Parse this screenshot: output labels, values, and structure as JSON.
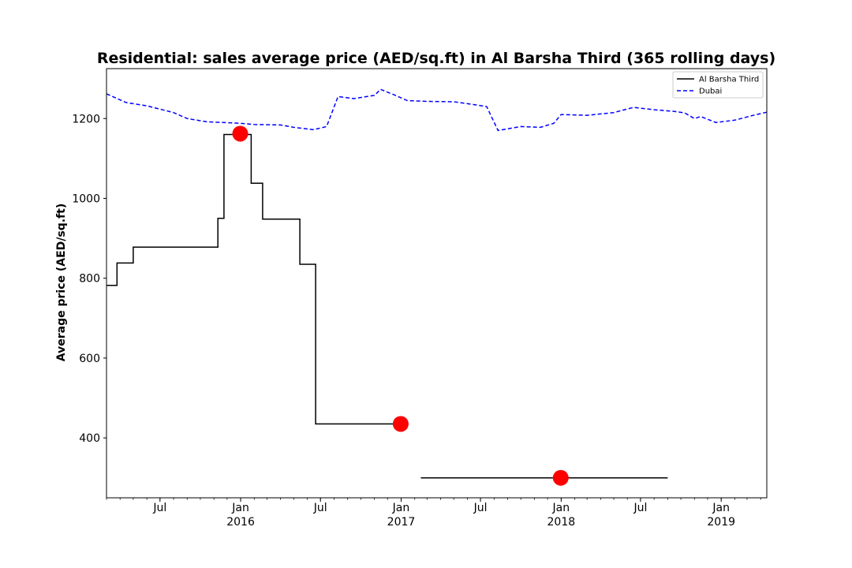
{
  "chart_data": {
    "type": "line",
    "title": "Residential: sales average price (AED/sq.ft) in Al Barsha Third (365 rolling days)",
    "ylabel": "Average price (AED/sq.ft)",
    "xlabel": "",
    "xlim": [
      "2015-03-01",
      "2019-04-15"
    ],
    "ylim": [
      250,
      1325
    ],
    "yticks": [
      400,
      600,
      800,
      1000,
      1200
    ],
    "xticks": [
      {
        "date": "2015-07-01",
        "label": "Jul",
        "sublabel": ""
      },
      {
        "date": "2016-01-01",
        "label": "Jan",
        "sublabel": "2016"
      },
      {
        "date": "2016-07-01",
        "label": "Jul",
        "sublabel": ""
      },
      {
        "date": "2017-01-01",
        "label": "Jan",
        "sublabel": "2017"
      },
      {
        "date": "2017-07-01",
        "label": "Jul",
        "sublabel": ""
      },
      {
        "date": "2018-01-01",
        "label": "Jan",
        "sublabel": "2018"
      },
      {
        "date": "2018-07-01",
        "label": "Jul",
        "sublabel": ""
      },
      {
        "date": "2019-01-01",
        "label": "Jan",
        "sublabel": "2019"
      }
    ],
    "legend_position": "top-right",
    "grid": false,
    "series": [
      {
        "name": "Al Barsha Third",
        "color": "#000000",
        "style": "solid",
        "step": true,
        "segments": [
          [
            {
              "x": "2015-03-01",
              "y": 782
            },
            {
              "x": "2015-03-25",
              "y": 838
            },
            {
              "x": "2015-05-01",
              "y": 878
            },
            {
              "x": "2015-11-10",
              "y": 950
            },
            {
              "x": "2015-11-24",
              "y": 1160
            },
            {
              "x": "2016-01-25",
              "y": 1038
            },
            {
              "x": "2016-02-20",
              "y": 948
            },
            {
              "x": "2016-05-15",
              "y": 835
            },
            {
              "x": "2016-06-20",
              "y": 435
            },
            {
              "x": "2017-01-01",
              "y": 435
            }
          ],
          [
            {
              "x": "2017-02-15",
              "y": 300
            },
            {
              "x": "2018-09-01",
              "y": 300
            }
          ]
        ]
      },
      {
        "name": "Dubai",
        "color": "#0000ff",
        "style": "dashed",
        "step": false,
        "points": [
          {
            "x": "2015-03-01",
            "y": 1262
          },
          {
            "x": "2015-04-15",
            "y": 1240
          },
          {
            "x": "2015-06-01",
            "y": 1232
          },
          {
            "x": "2015-08-01",
            "y": 1215
          },
          {
            "x": "2015-09-01",
            "y": 1200
          },
          {
            "x": "2015-10-15",
            "y": 1192
          },
          {
            "x": "2016-01-01",
            "y": 1188
          },
          {
            "x": "2016-02-01",
            "y": 1185
          },
          {
            "x": "2016-04-01",
            "y": 1184
          },
          {
            "x": "2016-05-01",
            "y": 1178
          },
          {
            "x": "2016-06-15",
            "y": 1172
          },
          {
            "x": "2016-07-15",
            "y": 1180
          },
          {
            "x": "2016-08-10",
            "y": 1255
          },
          {
            "x": "2016-09-15",
            "y": 1250
          },
          {
            "x": "2016-11-01",
            "y": 1258
          },
          {
            "x": "2016-11-15",
            "y": 1273
          },
          {
            "x": "2016-12-15",
            "y": 1260
          },
          {
            "x": "2017-01-15",
            "y": 1245
          },
          {
            "x": "2017-03-01",
            "y": 1243
          },
          {
            "x": "2017-05-01",
            "y": 1242
          },
          {
            "x": "2017-06-15",
            "y": 1235
          },
          {
            "x": "2017-07-15",
            "y": 1230
          },
          {
            "x": "2017-08-10",
            "y": 1170
          },
          {
            "x": "2017-10-01",
            "y": 1180
          },
          {
            "x": "2017-11-15",
            "y": 1178
          },
          {
            "x": "2017-12-15",
            "y": 1188
          },
          {
            "x": "2018-01-01",
            "y": 1210
          },
          {
            "x": "2018-03-01",
            "y": 1208
          },
          {
            "x": "2018-05-01",
            "y": 1215
          },
          {
            "x": "2018-06-15",
            "y": 1228
          },
          {
            "x": "2018-08-01",
            "y": 1222
          },
          {
            "x": "2018-09-15",
            "y": 1218
          },
          {
            "x": "2018-10-10",
            "y": 1214
          },
          {
            "x": "2018-11-01",
            "y": 1200
          },
          {
            "x": "2018-11-15",
            "y": 1205
          },
          {
            "x": "2018-12-20",
            "y": 1190
          },
          {
            "x": "2019-02-01",
            "y": 1196
          },
          {
            "x": "2019-03-15",
            "y": 1208
          },
          {
            "x": "2019-04-15",
            "y": 1216
          }
        ]
      }
    ],
    "markers": [
      {
        "x": "2015-12-31",
        "y": 1162,
        "color": "#ff0000"
      },
      {
        "x": "2016-12-31",
        "y": 435,
        "color": "#ff0000"
      },
      {
        "x": "2017-12-31",
        "y": 300,
        "color": "#ff0000"
      }
    ]
  }
}
